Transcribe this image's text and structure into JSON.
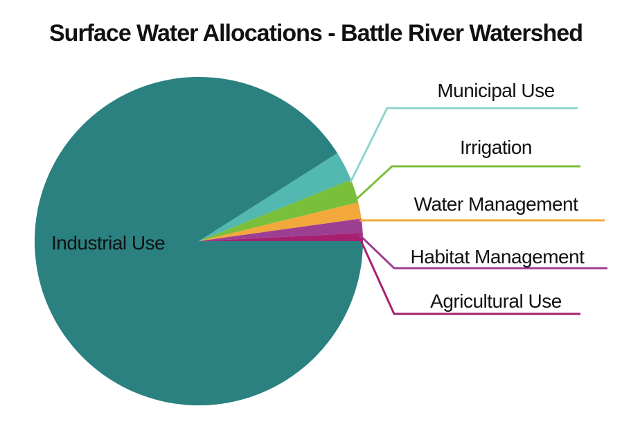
{
  "chart_data": {
    "type": "pie",
    "title": "Surface Water Allocations - Battle River Watershed",
    "slices": [
      {
        "label": "Industrial Use",
        "value": 91.0,
        "color": "#2b8080"
      },
      {
        "label": "Municipal Use",
        "value": 2.9,
        "color": "#52b8b0"
      },
      {
        "label": "Irrigation",
        "value": 2.3,
        "color": "#7abf3a"
      },
      {
        "label": "Water Management",
        "value": 1.6,
        "color": "#f3a83b"
      },
      {
        "label": "Habitat Management",
        "value": 1.4,
        "color": "#9c3f93"
      },
      {
        "label": "Agricultural Use",
        "value": 0.8,
        "color": "#a6206f"
      }
    ],
    "leader_colors": {
      "Municipal Use": "#8fd3cf",
      "Irrigation": "#7abf3a",
      "Water Management": "#f3a83b",
      "Habitat Management": "#9c3f93",
      "Agricultural Use": "#a6206f"
    }
  }
}
